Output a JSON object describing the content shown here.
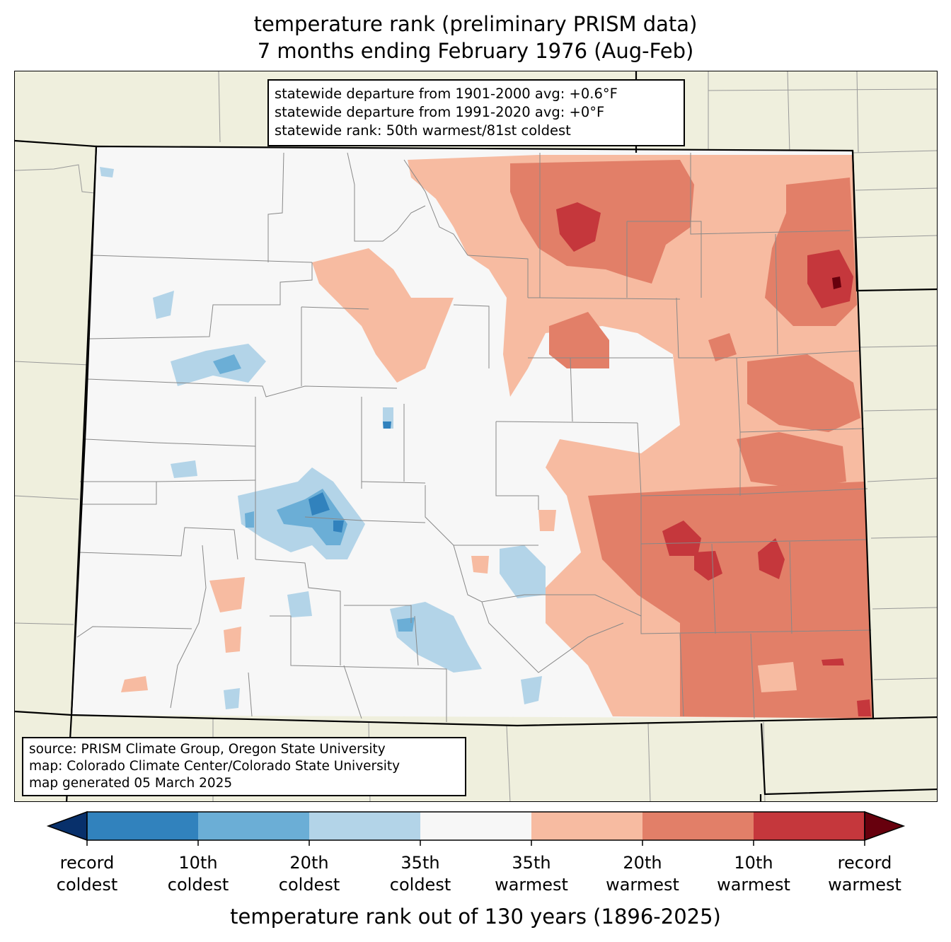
{
  "title": {
    "line1": "temperature rank (preliminary PRISM data)",
    "line2": "7 months ending February 1976 (Aug-Feb)"
  },
  "stats": {
    "departure_1901_2000": "statewide departure from 1901-2000 avg: +0.6°F",
    "departure_1991_2020": "statewide departure from 1991-2020 avg: +0°F",
    "rank": "statewide rank: 50th warmest/81st coldest"
  },
  "source": {
    "line1": "source: PRISM Climate Group, Oregon State University",
    "line2": "map: Colorado Climate Center/Colorado State University",
    "line3": "map generated 05 March 2025"
  },
  "legend": {
    "title": "temperature rank out of 130 years (1896-2025)",
    "ticks": [
      {
        "line1": "record",
        "line2": "coldest"
      },
      {
        "line1": "10th",
        "line2": "coldest"
      },
      {
        "line1": "20th",
        "line2": "coldest"
      },
      {
        "line1": "35th",
        "line2": "coldest"
      },
      {
        "line1": "35th",
        "line2": "warmest"
      },
      {
        "line1": "20th",
        "line2": "warmest"
      },
      {
        "line1": "10th",
        "line2": "warmest"
      },
      {
        "line1": "record",
        "line2": "warmest"
      }
    ],
    "colors": {
      "below_record_coldest": "#08306b",
      "record_to_10th_coldest": "#3182bd",
      "10th_to_20th_coldest": "#6baed6",
      "20th_to_35th_coldest": "#b3d4e8",
      "near_normal": "#f7f7f7",
      "35th_to_20th_warmest": "#f7bba1",
      "20th_to_10th_warmest": "#e27f68",
      "10th_to_record_warmest": "#c5373c",
      "above_record_warmest": "#67000d"
    }
  },
  "map_colors": {
    "outside_state": "#efefdd",
    "county_lines": "#888888",
    "state_border": "#000000"
  }
}
